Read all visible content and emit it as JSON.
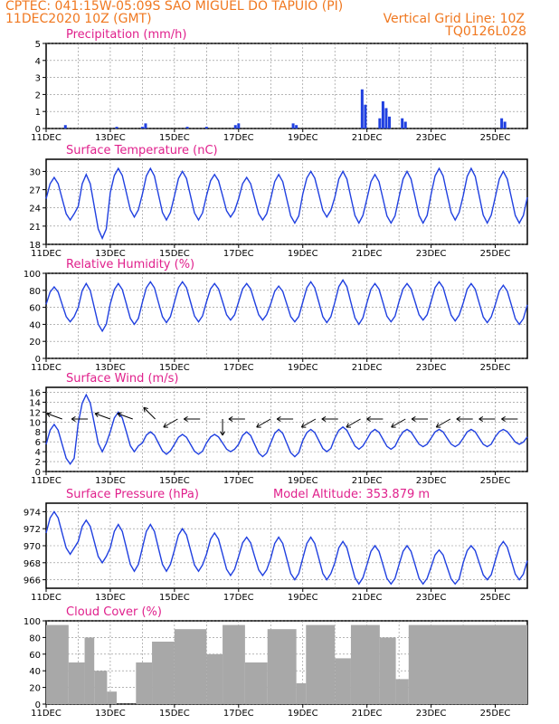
{
  "header": {
    "line1": "CPTEC:   041:15W-05:09S  SAO MIGUEL DO TAPUIO (PI)",
    "line2": "11DEC2020 10Z (GMT)",
    "grid_note": "Vertical Grid Line: 10Z",
    "code": "TQ0126L028"
  },
  "colors": {
    "header": "#f07820",
    "title": "#e0208c",
    "series": "#2040e0",
    "cloud": "#a8a8a8",
    "grid": "#888888"
  },
  "x_axis": {
    "labels": [
      "11DEC",
      "13DEC",
      "15DEC",
      "17DEC",
      "19DEC",
      "21DEC",
      "23DEC",
      "25DEC"
    ],
    "start_date": "11DEC2020 10Z",
    "end_date": "26DEC2020 10Z",
    "step_hours": 3,
    "vertical_grid": "10Z"
  },
  "chart_data": [
    {
      "type": "bar",
      "title": "Precipitation (mm/h)",
      "ylim": [
        0,
        5
      ],
      "yticks": [
        0,
        1,
        2,
        3,
        4,
        5
      ],
      "nonzero": [
        {
          "day": 0.6,
          "value": 0.2
        },
        {
          "day": 2.2,
          "value": 0.1
        },
        {
          "day": 3.0,
          "value": 0.1
        },
        {
          "day": 3.1,
          "value": 0.3
        },
        {
          "day": 4.4,
          "value": 0.1
        },
        {
          "day": 5.0,
          "value": 0.1
        },
        {
          "day": 5.9,
          "value": 0.2
        },
        {
          "day": 6.0,
          "value": 0.3
        },
        {
          "day": 7.7,
          "value": 0.3
        },
        {
          "day": 7.8,
          "value": 0.2
        },
        {
          "day": 9.85,
          "value": 2.3
        },
        {
          "day": 9.95,
          "value": 1.4
        },
        {
          "day": 10.4,
          "value": 0.6
        },
        {
          "day": 10.5,
          "value": 1.6
        },
        {
          "day": 10.6,
          "value": 1.2
        },
        {
          "day": 10.7,
          "value": 0.7
        },
        {
          "day": 11.1,
          "value": 0.6
        },
        {
          "day": 11.2,
          "value": 0.4
        },
        {
          "day": 14.2,
          "value": 0.6
        },
        {
          "day": 14.3,
          "value": 0.4
        }
      ]
    },
    {
      "type": "line",
      "title": "Surface Temperature (nC)",
      "ylim": [
        18,
        32
      ],
      "yticks": [
        18,
        21,
        24,
        27,
        30
      ],
      "daily_max": [
        29.0,
        29.5,
        30.5,
        30.5,
        30.0,
        29.5,
        29.0,
        29.5,
        30.0,
        30.0,
        29.5,
        30.0,
        30.5,
        30.5,
        30.0
      ],
      "daily_min": [
        22.0,
        19.0,
        22.5,
        22.0,
        22.0,
        22.5,
        22.0,
        21.5,
        22.5,
        21.5,
        21.5,
        21.5,
        22.0,
        21.5,
        21.5
      ]
    },
    {
      "type": "line",
      "title": "Relative Humidity (%)",
      "ylim": [
        0,
        100
      ],
      "yticks": [
        0,
        20,
        40,
        60,
        80,
        100
      ],
      "daily_max": [
        84,
        88,
        88,
        90,
        90,
        88,
        88,
        85,
        90,
        92,
        88,
        88,
        90,
        88,
        86
      ],
      "daily_min": [
        43,
        32,
        40,
        42,
        43,
        45,
        45,
        43,
        42,
        40,
        43,
        45,
        44,
        42,
        40
      ]
    },
    {
      "type": "line",
      "title": "Surface Wind (m/s)",
      "ylim": [
        0,
        17
      ],
      "yticks": [
        0,
        2,
        4,
        6,
        8,
        10,
        12,
        14,
        16
      ],
      "daily_max": [
        9.5,
        15.5,
        12.0,
        8.0,
        7.5,
        7.5,
        8.0,
        8.5,
        8.5,
        9.0,
        8.5,
        8.5,
        8.5,
        8.5,
        8.5
      ],
      "daily_min": [
        1.5,
        4.0,
        4.0,
        3.5,
        3.5,
        4.0,
        3.0,
        3.0,
        4.0,
        4.5,
        4.5,
        5.0,
        5.0,
        5.0,
        5.5
      ],
      "arrows": [
        {
          "day": 0.5,
          "dir": "WNW"
        },
        {
          "day": 1.3,
          "dir": "W"
        },
        {
          "day": 2.0,
          "dir": "WNW"
        },
        {
          "day": 2.7,
          "dir": "WNW"
        },
        {
          "day": 3.4,
          "dir": "NW"
        },
        {
          "day": 4.1,
          "dir": "SW"
        },
        {
          "day": 4.8,
          "dir": "W"
        },
        {
          "day": 5.5,
          "dir": "S"
        },
        {
          "day": 6.2,
          "dir": "W"
        },
        {
          "day": 7.0,
          "dir": "SW"
        },
        {
          "day": 7.7,
          "dir": "W"
        },
        {
          "day": 8.4,
          "dir": "SW"
        },
        {
          "day": 9.1,
          "dir": "W"
        },
        {
          "day": 9.8,
          "dir": "SW"
        },
        {
          "day": 10.5,
          "dir": "W"
        },
        {
          "day": 11.2,
          "dir": "SW"
        },
        {
          "day": 11.9,
          "dir": "W"
        },
        {
          "day": 12.6,
          "dir": "SW"
        },
        {
          "day": 13.3,
          "dir": "W"
        },
        {
          "day": 14.0,
          "dir": "W"
        },
        {
          "day": 14.7,
          "dir": "W"
        }
      ]
    },
    {
      "type": "line",
      "title": "Surface Pressure (hPa)",
      "annotation": "Model Altitude: 353.879 m",
      "ylim": [
        965,
        975
      ],
      "yticks": [
        966,
        968,
        970,
        972,
        974
      ],
      "daily_max": [
        974.0,
        973.0,
        972.5,
        972.5,
        972.0,
        971.5,
        971.0,
        971.0,
        971.0,
        970.5,
        970.0,
        970.0,
        969.5,
        970.0,
        970.5
      ],
      "daily_min": [
        969.0,
        968.0,
        967.0,
        967.0,
        967.0,
        966.5,
        966.5,
        966.0,
        966.0,
        965.5,
        965.5,
        965.5,
        965.5,
        966.0,
        966.0
      ]
    },
    {
      "type": "bar",
      "title": "Cloud Cover (%)",
      "ylim": [
        0,
        100
      ],
      "yticks": [
        0,
        20,
        40,
        60,
        80,
        100
      ],
      "segments": [
        {
          "from": 0.0,
          "to": 0.7,
          "value": 95
        },
        {
          "from": 0.7,
          "to": 1.2,
          "value": 50
        },
        {
          "from": 1.2,
          "to": 1.5,
          "value": 80
        },
        {
          "from": 1.5,
          "to": 1.9,
          "value": 40
        },
        {
          "from": 1.9,
          "to": 2.2,
          "value": 15
        },
        {
          "from": 2.2,
          "to": 2.8,
          "value": 0
        },
        {
          "from": 2.8,
          "to": 3.3,
          "value": 50
        },
        {
          "from": 3.3,
          "to": 4.0,
          "value": 75
        },
        {
          "from": 4.0,
          "to": 5.0,
          "value": 90
        },
        {
          "from": 5.0,
          "to": 5.5,
          "value": 60
        },
        {
          "from": 5.5,
          "to": 6.2,
          "value": 95
        },
        {
          "from": 6.2,
          "to": 6.9,
          "value": 50
        },
        {
          "from": 6.9,
          "to": 7.8,
          "value": 90
        },
        {
          "from": 7.8,
          "to": 8.1,
          "value": 25
        },
        {
          "from": 8.1,
          "to": 9.0,
          "value": 95
        },
        {
          "from": 9.0,
          "to": 9.5,
          "value": 55
        },
        {
          "from": 9.5,
          "to": 10.4,
          "value": 95
        },
        {
          "from": 10.4,
          "to": 10.9,
          "value": 80
        },
        {
          "from": 10.9,
          "to": 11.3,
          "value": 30
        },
        {
          "from": 11.3,
          "to": 15.0,
          "value": 95
        }
      ]
    }
  ]
}
